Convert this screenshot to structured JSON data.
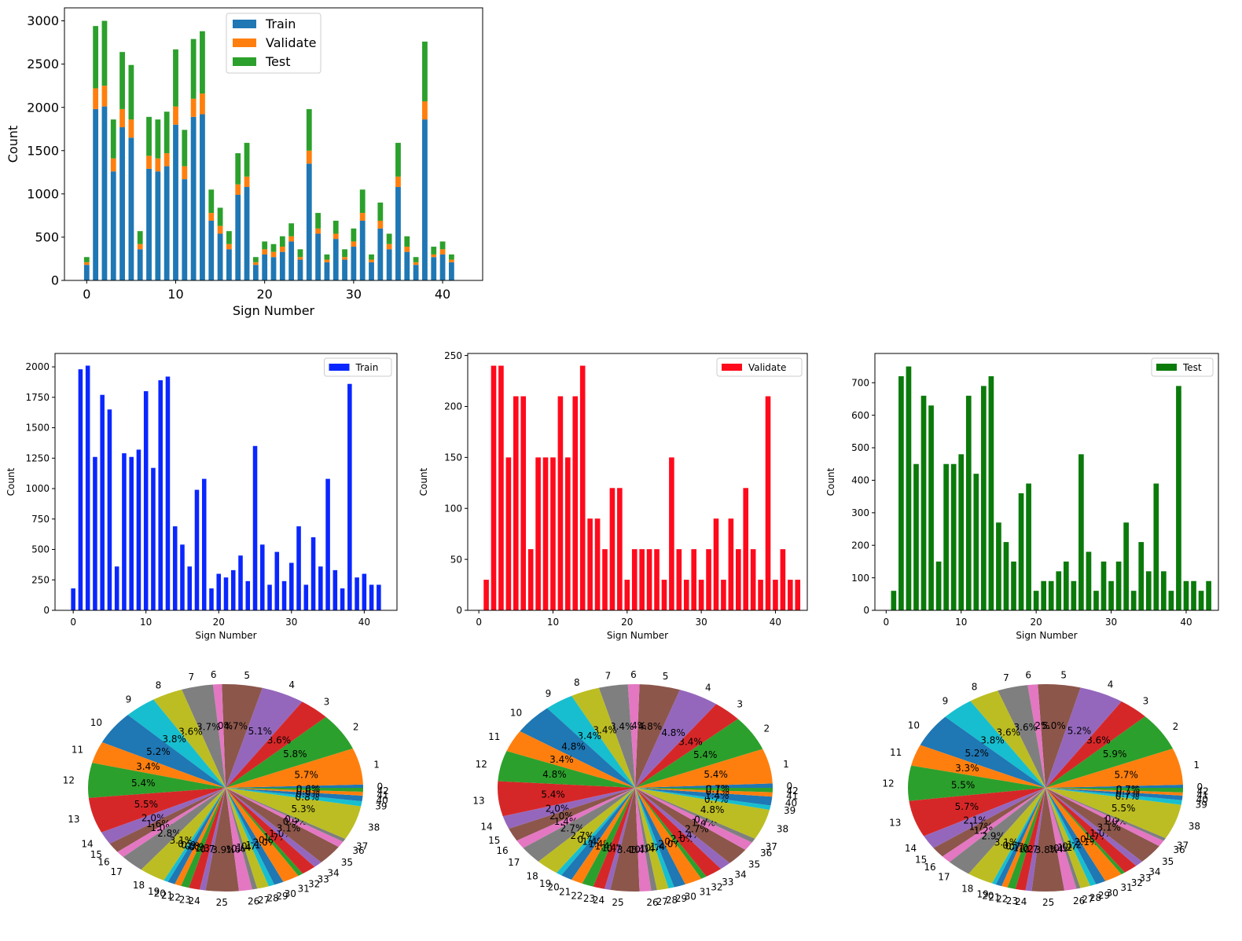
{
  "colors": {
    "train": "#1f77b4",
    "validate": "#ff7f0e",
    "test": "#2ca02c",
    "train_single": "#0a26ff",
    "validate_single": "#ff0a1c",
    "test_single": "#0a7a0a",
    "pie_cycle": [
      "#1f77b4",
      "#ff7f0e",
      "#2ca02c",
      "#d62728",
      "#9467bd",
      "#8c564b",
      "#e377c2",
      "#7f7f7f",
      "#bcbd22",
      "#17becf"
    ]
  },
  "chart_data": [
    {
      "id": "stacked",
      "type": "bar",
      "stacked": true,
      "x": [
        0,
        1,
        2,
        3,
        4,
        5,
        6,
        7,
        8,
        9,
        10,
        11,
        12,
        13,
        14,
        15,
        16,
        17,
        18,
        19,
        20,
        21,
        22,
        23,
        24,
        25,
        26,
        27,
        28,
        29,
        30,
        31,
        32,
        33,
        34,
        35,
        36,
        37,
        38,
        39,
        40,
        41
      ],
      "series": [
        {
          "name": "Train",
          "values": [
            180,
            1980,
            2010,
            1260,
            1770,
            1650,
            360,
            1290,
            1260,
            1320,
            1800,
            1170,
            1890,
            1920,
            690,
            540,
            360,
            990,
            1080,
            180,
            300,
            270,
            330,
            450,
            240,
            1350,
            540,
            210,
            480,
            240,
            390,
            690,
            210,
            600,
            360,
            1080,
            330,
            180,
            1860,
            270,
            300,
            210
          ]
        },
        {
          "name": "Validate",
          "values": [
            30,
            240,
            240,
            150,
            210,
            210,
            60,
            150,
            150,
            150,
            210,
            150,
            210,
            240,
            90,
            90,
            60,
            120,
            120,
            30,
            60,
            60,
            60,
            60,
            30,
            150,
            60,
            30,
            60,
            30,
            60,
            90,
            30,
            90,
            60,
            120,
            60,
            30,
            210,
            30,
            60,
            30
          ]
        },
        {
          "name": "Test",
          "values": [
            60,
            720,
            750,
            450,
            660,
            630,
            150,
            450,
            450,
            480,
            660,
            420,
            690,
            720,
            270,
            210,
            150,
            360,
            390,
            60,
            90,
            90,
            120,
            150,
            90,
            480,
            180,
            60,
            150,
            90,
            150,
            270,
            60,
            210,
            120,
            390,
            120,
            60,
            690,
            90,
            90,
            60
          ]
        }
      ],
      "xlabel": "Sign Number",
      "ylabel": "Count",
      "xlim": [
        -2.5,
        44.5
      ],
      "ylim": [
        0,
        3150
      ],
      "x_ticks": [
        "0",
        "10",
        "20",
        "30",
        "40"
      ],
      "y_ticks": [
        "0",
        "500",
        "1000",
        "1500",
        "2000",
        "2500",
        "3000"
      ],
      "legend": "top-center"
    },
    {
      "id": "train",
      "type": "bar",
      "x": [
        0,
        1,
        2,
        3,
        4,
        5,
        6,
        7,
        8,
        9,
        10,
        11,
        12,
        13,
        14,
        15,
        16,
        17,
        18,
        19,
        20,
        21,
        22,
        23,
        24,
        25,
        26,
        27,
        28,
        29,
        30,
        31,
        32,
        33,
        34,
        35,
        36,
        37,
        38,
        39,
        40,
        41,
        42
      ],
      "values": [
        180,
        1980,
        2010,
        1260,
        1770,
        1650,
        360,
        1290,
        1260,
        1320,
        1800,
        1170,
        1890,
        1920,
        690,
        540,
        360,
        990,
        1080,
        180,
        300,
        270,
        330,
        450,
        240,
        1350,
        540,
        210,
        480,
        240,
        390,
        690,
        210,
        600,
        360,
        1080,
        330,
        180,
        1860,
        270,
        300,
        210,
        210
      ],
      "series": [
        {
          "name": "Train"
        }
      ],
      "xlabel": "Sign Number",
      "ylabel": "Count",
      "xlim": [
        -2.5,
        44.5
      ],
      "ylim": [
        0,
        2110
      ],
      "x_ticks": [
        "0",
        "10",
        "20",
        "30",
        "40"
      ],
      "y_ticks": [
        "0",
        "250",
        "500",
        "750",
        "1000",
        "1250",
        "1500",
        "1750",
        "2000"
      ],
      "legend": "top-right"
    },
    {
      "id": "validate",
      "type": "bar",
      "x": [
        0,
        1,
        2,
        3,
        4,
        5,
        6,
        7,
        8,
        9,
        10,
        11,
        12,
        13,
        14,
        15,
        16,
        17,
        18,
        19,
        20,
        21,
        22,
        23,
        24,
        25,
        26,
        27,
        28,
        29,
        30,
        31,
        32,
        33,
        34,
        35,
        36,
        37,
        38,
        39,
        40,
        41,
        42
      ],
      "values": [
        30,
        240,
        240,
        150,
        210,
        210,
        60,
        150,
        150,
        150,
        210,
        150,
        210,
        240,
        90,
        90,
        60,
        120,
        120,
        30,
        60,
        60,
        60,
        60,
        30,
        150,
        60,
        30,
        60,
        30,
        60,
        90,
        30,
        90,
        60,
        120,
        60,
        30,
        210,
        30,
        60,
        30,
        30
      ],
      "series": [
        {
          "name": "Validate"
        }
      ],
      "xlabel": "Sign Number",
      "ylabel": "Count",
      "xlim": [
        -1.5,
        44.3
      ],
      "ylim": [
        0,
        252
      ],
      "x_ticks": [
        "0",
        "10",
        "20",
        "30",
        "40"
      ],
      "y_ticks": [
        "0",
        "50",
        "100",
        "150",
        "200",
        "250"
      ],
      "legend": "top-right"
    },
    {
      "id": "test",
      "type": "bar",
      "x": [
        0,
        1,
        2,
        3,
        4,
        5,
        6,
        7,
        8,
        9,
        10,
        11,
        12,
        13,
        14,
        15,
        16,
        17,
        18,
        19,
        20,
        21,
        22,
        23,
        24,
        25,
        26,
        27,
        28,
        29,
        30,
        31,
        32,
        33,
        34,
        35,
        36,
        37,
        38,
        39,
        40,
        41,
        42
      ],
      "values": [
        60,
        720,
        750,
        450,
        660,
        630,
        150,
        450,
        450,
        480,
        660,
        420,
        690,
        720,
        270,
        210,
        150,
        360,
        390,
        60,
        90,
        90,
        120,
        150,
        90,
        480,
        180,
        60,
        150,
        90,
        150,
        270,
        60,
        210,
        120,
        390,
        120,
        60,
        690,
        90,
        90,
        60,
        90
      ],
      "series": [
        {
          "name": "Test"
        }
      ],
      "xlabel": "Sign Number",
      "ylabel": "Count",
      "xlim": [
        -1.5,
        44.3
      ],
      "ylim": [
        0,
        790
      ],
      "x_ticks": [
        "0",
        "10",
        "20",
        "30",
        "40"
      ],
      "y_ticks": [
        "0",
        "100",
        "200",
        "300",
        "400",
        "500",
        "600",
        "700"
      ],
      "legend": "top-right"
    },
    {
      "id": "pie_train",
      "type": "pie",
      "labels": [
        "0",
        "1",
        "2",
        "3",
        "4",
        "5",
        "6",
        "7",
        "8",
        "9",
        "10",
        "11",
        "12",
        "13",
        "14",
        "15",
        "16",
        "17",
        "18",
        "19",
        "20",
        "21",
        "22",
        "23",
        "24",
        "25",
        "26",
        "27",
        "28",
        "29",
        "30",
        "31",
        "32",
        "33",
        "34",
        "35",
        "36",
        "37",
        "38",
        "39",
        "40",
        "41",
        "42"
      ],
      "values": [
        180,
        1980,
        2010,
        1260,
        1770,
        1650,
        360,
        1290,
        1260,
        1320,
        1800,
        1170,
        1890,
        1920,
        690,
        540,
        360,
        990,
        1080,
        180,
        300,
        270,
        330,
        450,
        240,
        1350,
        540,
        210,
        480,
        240,
        390,
        690,
        210,
        600,
        360,
        1080,
        330,
        180,
        1860,
        270,
        300,
        210,
        210
      ],
      "pct_labels": [
        "0.5%",
        "5.7%",
        "5.8%",
        "3.6%",
        "5.1%",
        "4.7%",
        "1.0%",
        "3.7%",
        "3.6%",
        "3.8%",
        "5.2%",
        "3.4%",
        "5.4%",
        "5.5%",
        "2.0%",
        "1.6%",
        "1.0%",
        "2.8%",
        "3.1%",
        "0.5%",
        "0.9%",
        "0.8%",
        "0.9%",
        "1.3%",
        "0.7%",
        "3.9%",
        "1.6%",
        "0.6%",
        "1.4%",
        "0.7%",
        "1.1%",
        "2.0%",
        "0.6%",
        "1.7%",
        "1.0%",
        "3.1%",
        "0.9%",
        "0.5%",
        "5.3%",
        "0.8%",
        "0.9%",
        "0.6%",
        "0.6%"
      ]
    },
    {
      "id": "pie_validate",
      "type": "pie",
      "labels": [
        "0",
        "1",
        "2",
        "3",
        "4",
        "5",
        "6",
        "7",
        "8",
        "9",
        "10",
        "11",
        "12",
        "13",
        "14",
        "15",
        "16",
        "17",
        "18",
        "19",
        "20",
        "21",
        "22",
        "23",
        "24",
        "25",
        "26",
        "27",
        "28",
        "29",
        "30",
        "31",
        "32",
        "33",
        "34",
        "35",
        "36",
        "37",
        "38",
        "39",
        "40",
        "41",
        "42"
      ],
      "values": [
        30,
        240,
        240,
        150,
        210,
        210,
        60,
        150,
        150,
        150,
        210,
        150,
        210,
        240,
        90,
        90,
        60,
        120,
        120,
        30,
        60,
        60,
        60,
        60,
        30,
        150,
        60,
        30,
        60,
        30,
        60,
        90,
        30,
        90,
        60,
        120,
        60,
        30,
        210,
        30,
        60,
        30,
        30
      ],
      "pct_labels": [
        "0.7%",
        "5.4%",
        "5.4%",
        "3.4%",
        "4.8%",
        "4.8%",
        "1.4%",
        "3.4%",
        "3.4%",
        "3.4%",
        "4.8%",
        "3.4%",
        "4.8%",
        "5.4%",
        "2.0%",
        "2.0%",
        "1.4%",
        "2.7%",
        "2.7%",
        "0.7%",
        "1.4%",
        "1.4%",
        "1.4%",
        "1.4%",
        "0.7%",
        "3.4%",
        "1.4%",
        "0.7%",
        "1.4%",
        "0.7%",
        "1.4%",
        "2.0%",
        "0.7%",
        "2.0%",
        "1.4%",
        "2.7%",
        "1.4%",
        "0.7%",
        "4.8%",
        "0.7%",
        "1.4%",
        "0.7%",
        "0.7%"
      ]
    },
    {
      "id": "pie_test",
      "type": "pie",
      "labels": [
        "0",
        "1",
        "2",
        "3",
        "4",
        "5",
        "6",
        "7",
        "8",
        "9",
        "10",
        "11",
        "12",
        "13",
        "14",
        "15",
        "16",
        "17",
        "18",
        "19",
        "20",
        "21",
        "22",
        "23",
        "24",
        "25",
        "26",
        "27",
        "28",
        "29",
        "30",
        "31",
        "32",
        "33",
        "34",
        "35",
        "36",
        "37",
        "38",
        "39",
        "40",
        "41",
        "42"
      ],
      "values": [
        60,
        720,
        750,
        450,
        660,
        630,
        150,
        450,
        450,
        480,
        660,
        420,
        690,
        720,
        270,
        210,
        150,
        360,
        390,
        60,
        90,
        90,
        120,
        150,
        90,
        480,
        180,
        60,
        150,
        90,
        150,
        270,
        60,
        210,
        120,
        390,
        120,
        60,
        690,
        90,
        90,
        60,
        90
      ],
      "pct_labels": [
        "0.5%",
        "5.7%",
        "5.9%",
        "3.6%",
        "5.2%",
        "5.0%",
        "1.2%",
        "3.6%",
        "3.6%",
        "3.8%",
        "5.2%",
        "3.3%",
        "5.5%",
        "5.7%",
        "2.1%",
        "1.7%",
        "1.2%",
        "2.9%",
        "3.1%",
        "0.5%",
        "0.7%",
        "0.7%",
        "1.0%",
        "1.2%",
        "0.7%",
        "3.8%",
        "1.4%",
        "0.5%",
        "1.2%",
        "0.7%",
        "1.2%",
        "2.1%",
        "0.5%",
        "1.7%",
        "1.0%",
        "3.1%",
        "1.0%",
        "0.5%",
        "5.5%",
        "0.7%",
        "0.7%",
        "0.5%",
        "0.7%"
      ]
    }
  ]
}
